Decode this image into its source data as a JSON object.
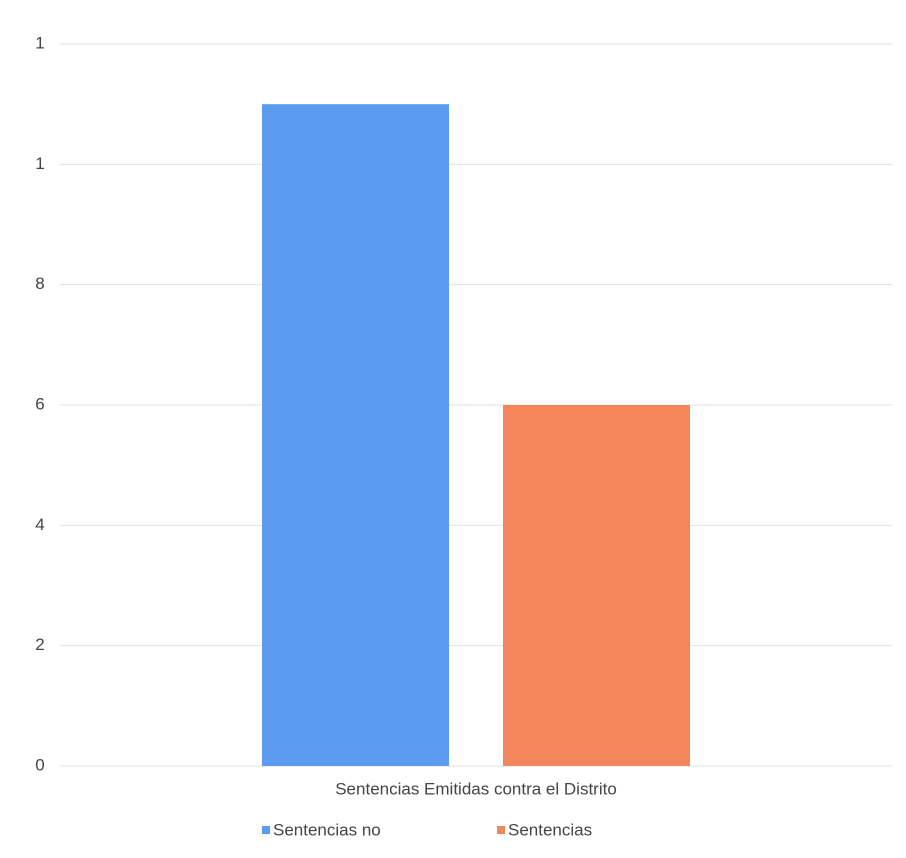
{
  "chart_data": {
    "type": "bar",
    "categories": [
      "Sentencias Emitidas contra el Distrito"
    ],
    "series": [
      {
        "name": "Sentencias no",
        "color": "#5b9bf0",
        "values": [
          11
        ]
      },
      {
        "name": "Sentencias",
        "color": "#f4865c",
        "values": [
          6
        ]
      }
    ],
    "ylim": [
      0,
      12
    ],
    "yticks": [
      0,
      2,
      4,
      6,
      8,
      {
        "value": 10,
        "label": "1"
      },
      {
        "value": 12,
        "label": "1"
      }
    ],
    "grid": true
  }
}
